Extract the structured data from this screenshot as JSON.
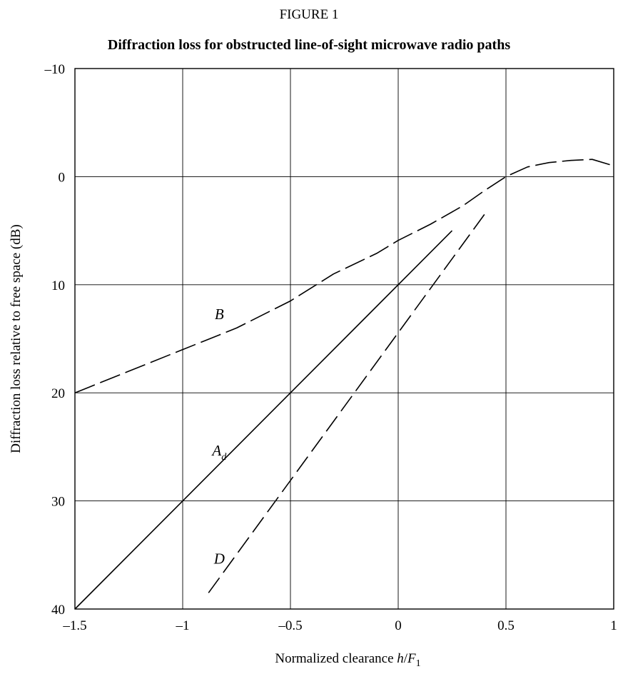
{
  "figure_label": "FIGURE 1",
  "chart_data": {
    "type": "line",
    "title": "Diffraction loss for obstructed line-of-sight microwave radio paths",
    "xlabel": {
      "text": "Normalized clearance h/F",
      "subscript": "1"
    },
    "ylabel": "Diffraction loss relative to free space (dB)",
    "xlim": [
      -1.5,
      1
    ],
    "ylim": [
      -10,
      40
    ],
    "y_inverted": true,
    "grid": true,
    "x_ticks": [
      -1.5,
      -1,
      -0.5,
      0,
      0.5,
      1
    ],
    "x_tick_labels": [
      "–1.5",
      "–1",
      "–0.5",
      "0",
      "0.5",
      "1"
    ],
    "y_ticks": [
      -10,
      0,
      10,
      20,
      30,
      40
    ],
    "y_tick_labels": [
      "–10",
      "0",
      "10",
      "20",
      "30",
      "40"
    ],
    "series": [
      {
        "name": "B",
        "style": "dashed",
        "x": [
          -1.5,
          -1.25,
          -1.0,
          -0.75,
          -0.5,
          -0.3,
          -0.1,
          0.0,
          0.15,
          0.3,
          0.4,
          0.5,
          0.6,
          0.7,
          0.8,
          0.9,
          1.0
        ],
        "y": [
          20,
          18.0,
          16.0,
          14.0,
          11.5,
          9.0,
          7.1,
          5.9,
          4.4,
          2.7,
          1.3,
          0.0,
          -0.9,
          -1.3,
          -1.5,
          -1.6,
          -1.0
        ]
      },
      {
        "name": "A",
        "name_subscript": "d",
        "style": "solid",
        "x": [
          -1.5,
          0.25
        ],
        "y": [
          40,
          5
        ]
      },
      {
        "name": "D",
        "style": "dashed",
        "x": [
          -0.88,
          0.4
        ],
        "y": [
          38.5,
          3.5
        ]
      }
    ],
    "annotations": [
      {
        "series": "B",
        "x": -0.83,
        "y": 13.2
      },
      {
        "series": "A",
        "x": -0.83,
        "y": 25.8
      },
      {
        "series": "D",
        "x": -0.83,
        "y": 35.8
      }
    ]
  }
}
